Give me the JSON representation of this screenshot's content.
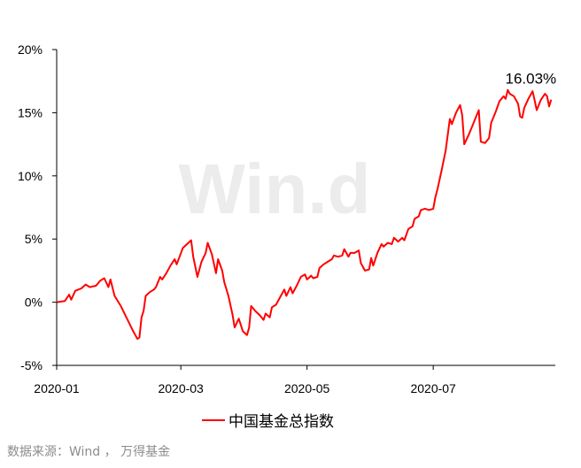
{
  "chart_data": {
    "type": "line",
    "watermark": "Win.d",
    "x_ticks": [
      "2020-01",
      "2020-03",
      "2020-05",
      "2020-07"
    ],
    "y_ticks": [
      "20%",
      "15%",
      "10%",
      "5%",
      "0%",
      "-5%"
    ],
    "ylim": [
      -5,
      20
    ],
    "xlim": [
      "2020-01-01",
      "2020-08-29"
    ],
    "grid": false,
    "legend_position": "bottom",
    "annotation": {
      "text": "16.03%",
      "date": "2020-08-27",
      "value": 16.03
    },
    "series": [
      {
        "name": "中国基金总指数",
        "color": "#ff0000",
        "points": [
          [
            "2020-01-01",
            0.0
          ],
          [
            "2020-01-05",
            0.1
          ],
          [
            "2020-01-07",
            0.6
          ],
          [
            "2020-01-08",
            0.2
          ],
          [
            "2020-01-10",
            0.9
          ],
          [
            "2020-01-13",
            1.1
          ],
          [
            "2020-01-15",
            1.4
          ],
          [
            "2020-01-17",
            1.2
          ],
          [
            "2020-01-20",
            1.3
          ],
          [
            "2020-01-22",
            1.7
          ],
          [
            "2020-01-24",
            1.9
          ],
          [
            "2020-01-26",
            1.2
          ],
          [
            "2020-01-27",
            1.8
          ],
          [
            "2020-01-29",
            0.5
          ],
          [
            "2020-02-01",
            -0.3
          ],
          [
            "2020-02-04",
            -1.3
          ],
          [
            "2020-02-07",
            -2.3
          ],
          [
            "2020-02-09",
            -2.9
          ],
          [
            "2020-02-10",
            -2.8
          ],
          [
            "2020-02-11",
            -1.2
          ],
          [
            "2020-02-12",
            -0.7
          ],
          [
            "2020-02-13",
            0.5
          ],
          [
            "2020-02-15",
            0.8
          ],
          [
            "2020-02-17",
            1.0
          ],
          [
            "2020-02-18",
            1.2
          ],
          [
            "2020-02-20",
            2.0
          ],
          [
            "2020-02-21",
            1.8
          ],
          [
            "2020-02-23",
            2.3
          ],
          [
            "2020-02-25",
            2.9
          ],
          [
            "2020-02-27",
            3.4
          ],
          [
            "2020-02-28",
            3.0
          ],
          [
            "2020-03-02",
            4.3
          ],
          [
            "2020-03-04",
            4.6
          ],
          [
            "2020-03-06",
            4.9
          ],
          [
            "2020-03-07",
            3.6
          ],
          [
            "2020-03-09",
            2.0
          ],
          [
            "2020-03-11",
            3.2
          ],
          [
            "2020-03-13",
            3.9
          ],
          [
            "2020-03-14",
            4.7
          ],
          [
            "2020-03-16",
            3.8
          ],
          [
            "2020-03-18",
            2.3
          ],
          [
            "2020-03-19",
            3.4
          ],
          [
            "2020-03-21",
            2.5
          ],
          [
            "2020-03-22",
            1.6
          ],
          [
            "2020-03-24",
            0.5
          ],
          [
            "2020-03-26",
            -1.0
          ],
          [
            "2020-03-27",
            -2.0
          ],
          [
            "2020-03-29",
            -1.3
          ],
          [
            "2020-03-31",
            -2.3
          ],
          [
            "2020-04-02",
            -2.6
          ],
          [
            "2020-04-03",
            -2.0
          ],
          [
            "2020-04-04",
            -0.3
          ],
          [
            "2020-04-06",
            -0.7
          ],
          [
            "2020-04-08",
            -1.0
          ],
          [
            "2020-04-10",
            -1.4
          ],
          [
            "2020-04-11",
            -0.9
          ],
          [
            "2020-04-13",
            -1.2
          ],
          [
            "2020-04-14",
            -0.4
          ],
          [
            "2020-04-16",
            -0.2
          ],
          [
            "2020-04-18",
            0.4
          ],
          [
            "2020-04-20",
            1.0
          ],
          [
            "2020-04-21",
            0.5
          ],
          [
            "2020-04-23",
            1.2
          ],
          [
            "2020-04-24",
            0.7
          ],
          [
            "2020-04-26",
            1.3
          ],
          [
            "2020-04-28",
            2.0
          ],
          [
            "2020-04-30",
            2.2
          ],
          [
            "2020-05-01",
            1.8
          ],
          [
            "2020-05-03",
            2.1
          ],
          [
            "2020-05-04",
            1.9
          ],
          [
            "2020-05-06",
            2.0
          ],
          [
            "2020-05-07",
            2.7
          ],
          [
            "2020-05-09",
            3.0
          ],
          [
            "2020-05-11",
            3.2
          ],
          [
            "2020-05-13",
            3.4
          ],
          [
            "2020-05-14",
            3.7
          ],
          [
            "2020-05-16",
            3.6
          ],
          [
            "2020-05-18",
            3.7
          ],
          [
            "2020-05-19",
            4.2
          ],
          [
            "2020-05-21",
            3.6
          ],
          [
            "2020-05-22",
            3.9
          ],
          [
            "2020-05-24",
            3.9
          ],
          [
            "2020-05-26",
            4.1
          ],
          [
            "2020-05-27",
            3.1
          ],
          [
            "2020-05-29",
            2.5
          ],
          [
            "2020-05-31",
            2.6
          ],
          [
            "2020-06-01",
            3.5
          ],
          [
            "2020-06-02",
            2.9
          ],
          [
            "2020-06-04",
            3.9
          ],
          [
            "2020-06-06",
            4.6
          ],
          [
            "2020-06-07",
            4.4
          ],
          [
            "2020-06-09",
            4.7
          ],
          [
            "2020-06-11",
            4.6
          ],
          [
            "2020-06-12",
            5.1
          ],
          [
            "2020-06-14",
            4.8
          ],
          [
            "2020-06-16",
            5.1
          ],
          [
            "2020-06-17",
            4.9
          ],
          [
            "2020-06-19",
            5.8
          ],
          [
            "2020-06-21",
            6.0
          ],
          [
            "2020-06-22",
            6.6
          ],
          [
            "2020-06-24",
            6.8
          ],
          [
            "2020-06-25",
            7.3
          ],
          [
            "2020-06-27",
            7.4
          ],
          [
            "2020-06-29",
            7.3
          ],
          [
            "2020-07-01",
            7.4
          ],
          [
            "2020-07-02",
            8.3
          ],
          [
            "2020-07-03",
            8.9
          ],
          [
            "2020-07-05",
            10.4
          ],
          [
            "2020-07-07",
            12.0
          ],
          [
            "2020-07-09",
            14.5
          ],
          [
            "2020-07-10",
            14.1
          ],
          [
            "2020-07-12",
            15.0
          ],
          [
            "2020-07-14",
            15.6
          ],
          [
            "2020-07-15",
            14.8
          ],
          [
            "2020-07-16",
            12.5
          ],
          [
            "2020-07-18",
            13.2
          ],
          [
            "2020-07-20",
            14.0
          ],
          [
            "2020-07-22",
            14.8
          ],
          [
            "2020-07-23",
            15.2
          ],
          [
            "2020-07-24",
            12.7
          ],
          [
            "2020-07-26",
            12.6
          ],
          [
            "2020-07-28",
            13.0
          ],
          [
            "2020-07-29",
            14.2
          ],
          [
            "2020-07-31",
            15.0
          ],
          [
            "2020-08-02",
            15.9
          ],
          [
            "2020-08-04",
            16.3
          ],
          [
            "2020-08-05",
            16.1
          ],
          [
            "2020-08-06",
            16.8
          ],
          [
            "2020-08-07",
            16.5
          ],
          [
            "2020-08-09",
            16.3
          ],
          [
            "2020-08-11",
            15.7
          ],
          [
            "2020-08-12",
            14.7
          ],
          [
            "2020-08-13",
            14.6
          ],
          [
            "2020-08-14",
            15.4
          ],
          [
            "2020-08-16",
            16.1
          ],
          [
            "2020-08-18",
            16.7
          ],
          [
            "2020-08-19",
            16.0
          ],
          [
            "2020-08-20",
            15.2
          ],
          [
            "2020-08-22",
            16.0
          ],
          [
            "2020-08-24",
            16.5
          ],
          [
            "2020-08-25",
            16.3
          ],
          [
            "2020-08-26",
            15.5
          ],
          [
            "2020-08-27",
            16.03
          ]
        ]
      }
    ]
  },
  "source": "数据来源：Wind ， 万得基金"
}
